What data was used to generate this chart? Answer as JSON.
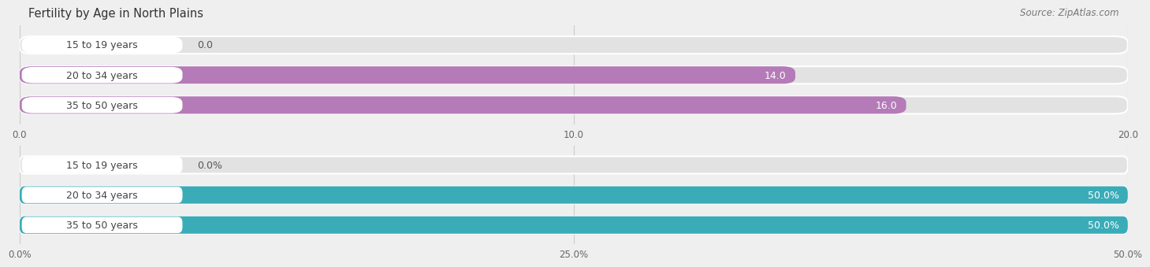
{
  "title": "Fertility by Age in North Plains",
  "source": "Source: ZipAtlas.com",
  "chart1": {
    "categories": [
      "15 to 19 years",
      "20 to 34 years",
      "35 to 50 years"
    ],
    "values": [
      0.0,
      14.0,
      16.0
    ],
    "bar_color": "#b57ab8",
    "xlim": [
      0,
      20
    ],
    "xticks": [
      0.0,
      10.0,
      20.0
    ],
    "xtick_labels": [
      "0.0",
      "10.0",
      "20.0"
    ]
  },
  "chart2": {
    "categories": [
      "15 to 19 years",
      "20 to 34 years",
      "35 to 50 years"
    ],
    "values": [
      0.0,
      50.0,
      50.0
    ],
    "bar_color": "#3aacb8",
    "xlim": [
      0,
      50
    ],
    "xticks": [
      0.0,
      25.0,
      50.0
    ],
    "xtick_labels": [
      "0.0%",
      "25.0%",
      "50.0%"
    ]
  },
  "bg_color": "#efefef",
  "bar_bg_color": "#e2e2e2",
  "label_box_color": "#ffffff",
  "label_fontsize": 9,
  "value_fontsize": 9,
  "title_fontsize": 10.5,
  "source_fontsize": 8.5
}
